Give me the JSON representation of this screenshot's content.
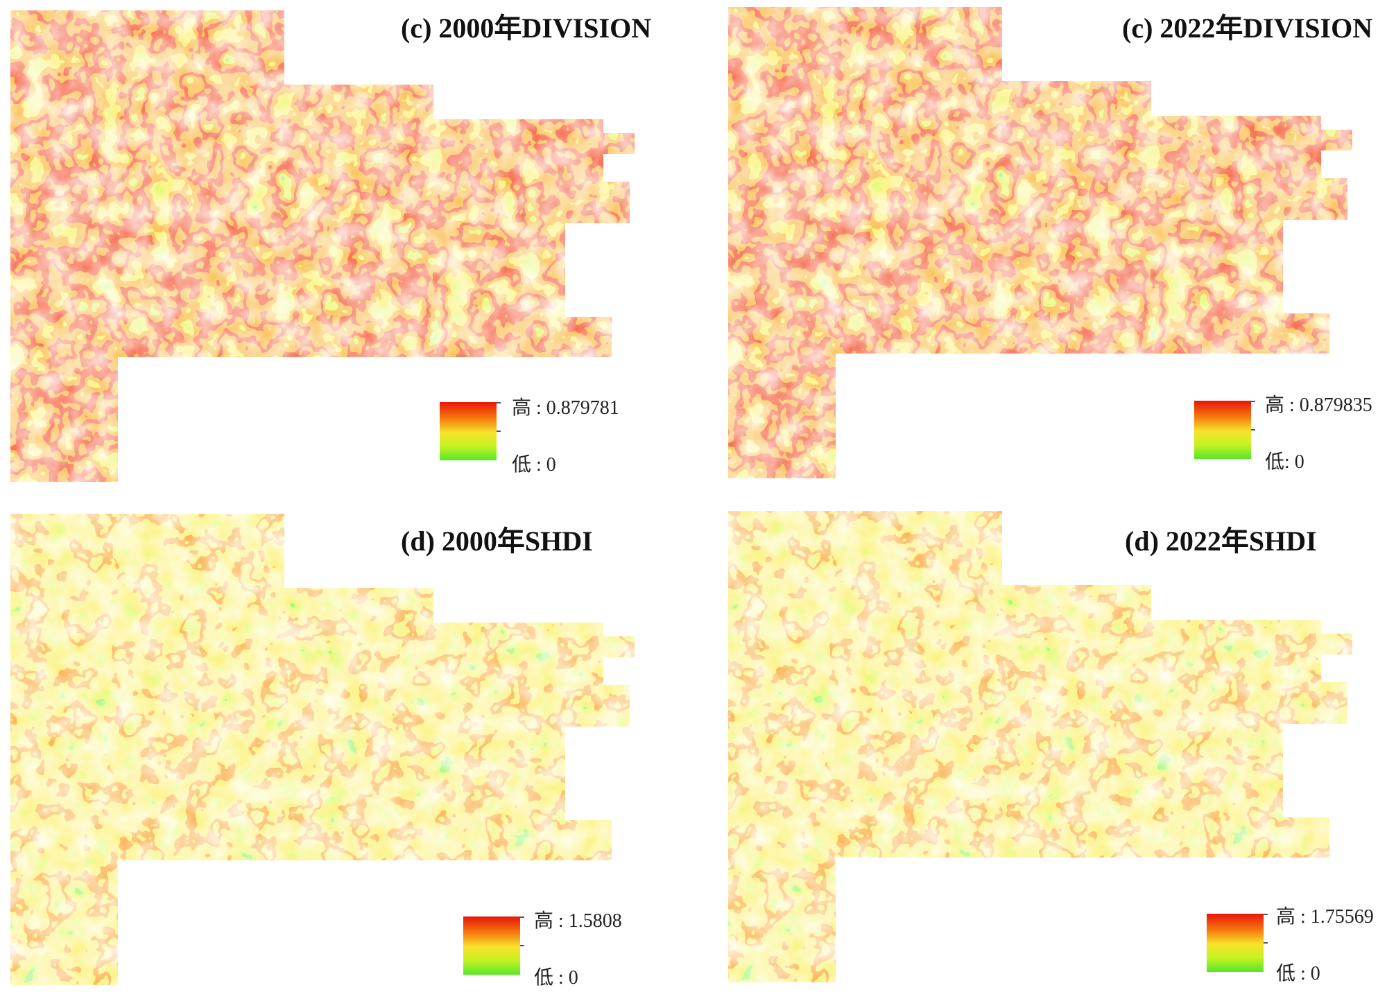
{
  "panels": [
    {
      "title": "(c) 2000年DIVISION",
      "legend_high": "高 : 0.879781",
      "legend_low": "低 : 0"
    },
    {
      "title": "(c) 2022年DIVISION",
      "legend_high": "高 : 0.879835",
      "legend_low": "低: 0"
    },
    {
      "title": "(d) 2000年SHDI",
      "legend_high": "高 : 1.5808",
      "legend_low": "低 : 0"
    },
    {
      "title": "(d) 2022年SHDI",
      "legend_high": "高 : 1.75569",
      "legend_low": "低 : 0"
    }
  ],
  "colors": {
    "low": "#57e62a",
    "mid": "#f7e22a",
    "high": "#e8160a"
  }
}
